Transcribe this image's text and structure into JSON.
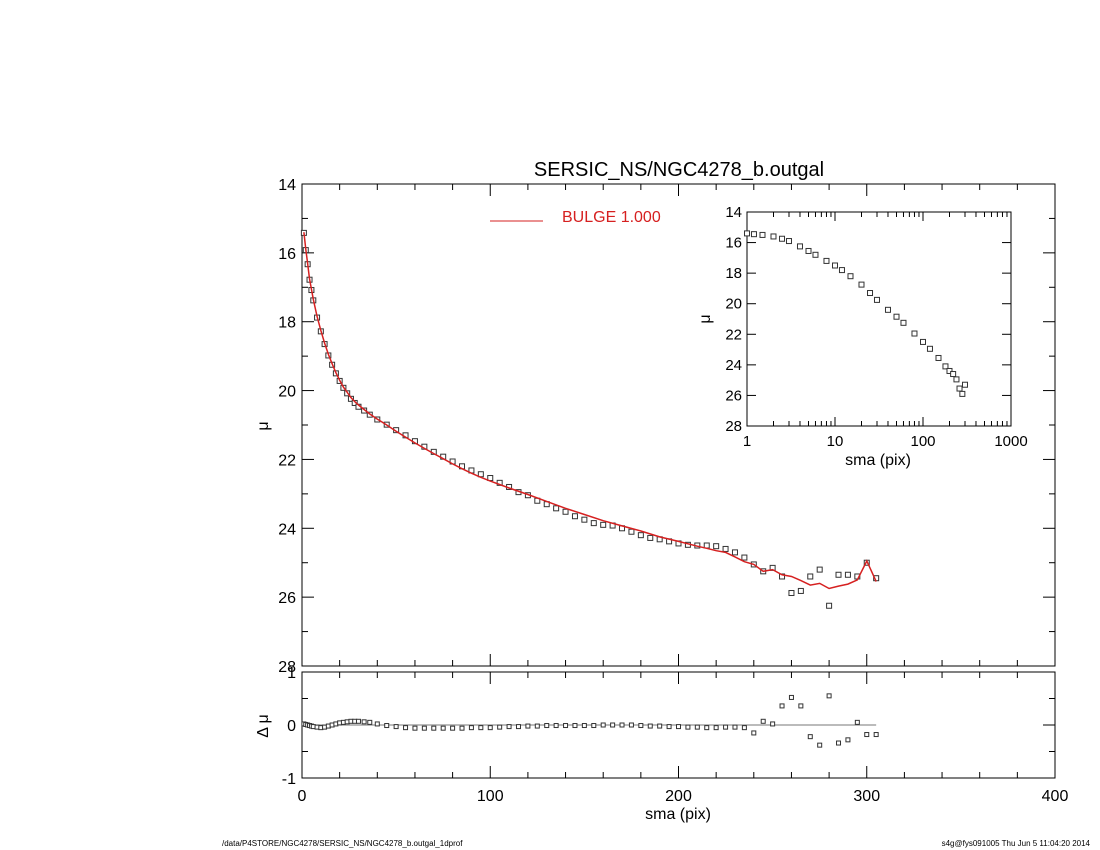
{
  "footer": {
    "path": "/data/P4STORE/NGC4278/SERSIC_NS/NGC4278_b.outgal_1dprof",
    "stamp": "s4g@fys091005  Thu Jun  5 11:04:20 2014"
  },
  "colors": {
    "model": "#d62020",
    "data": "#333333",
    "axes": "#000000"
  },
  "chart_data": [
    {
      "id": "main",
      "type": "scatter",
      "title": "SERSIC_NS/NGC4278_b.outgal",
      "xlabel": "",
      "ylabel": "μ",
      "xlim": [
        0,
        400
      ],
      "ylim": [
        28,
        14
      ],
      "xticks": [
        0,
        100,
        200,
        300,
        400
      ],
      "yticks": [
        14,
        16,
        18,
        20,
        22,
        24,
        26,
        28
      ],
      "legend": {
        "placement": "top-center",
        "entries": [
          {
            "label": "BULGE  1.000",
            "color": "#d62020"
          }
        ]
      },
      "model": {
        "name": "BULGE",
        "x": [
          1,
          2,
          3,
          4,
          5,
          6,
          8,
          10,
          12,
          14,
          16,
          18,
          20,
          22,
          24,
          26,
          28,
          30,
          33,
          36,
          40,
          45,
          50,
          55,
          60,
          65,
          70,
          75,
          80,
          85,
          90,
          95,
          100,
          110,
          120,
          130,
          140,
          150,
          160,
          170,
          180,
          190,
          200,
          210,
          215,
          220,
          225,
          230,
          235,
          240,
          245,
          250,
          255,
          260,
          265,
          270,
          275,
          280,
          285,
          290,
          295,
          300,
          305
        ],
        "y": [
          15.4,
          15.9,
          16.3,
          16.75,
          17.05,
          17.35,
          17.85,
          18.25,
          18.62,
          18.95,
          19.22,
          19.48,
          19.7,
          19.9,
          20.05,
          20.2,
          20.32,
          20.42,
          20.55,
          20.68,
          20.83,
          21.0,
          21.18,
          21.35,
          21.52,
          21.68,
          21.83,
          21.98,
          22.13,
          22.27,
          22.4,
          22.52,
          22.63,
          22.83,
          23.02,
          23.22,
          23.42,
          23.6,
          23.78,
          23.93,
          24.08,
          24.25,
          24.38,
          24.52,
          24.58,
          24.65,
          24.7,
          24.83,
          24.97,
          25.05,
          25.25,
          25.2,
          25.35,
          25.4,
          25.52,
          25.65,
          25.6,
          25.75,
          25.68,
          25.62,
          25.5,
          24.95,
          25.55
        ]
      },
      "data": {
        "name": "data",
        "x": [
          1,
          2,
          3,
          4,
          5,
          6,
          8,
          10,
          12,
          14,
          16,
          18,
          20,
          22,
          24,
          26,
          28,
          30,
          33,
          36,
          40,
          45,
          50,
          55,
          60,
          65,
          70,
          75,
          80,
          85,
          90,
          95,
          100,
          105,
          110,
          115,
          120,
          125,
          130,
          135,
          140,
          145,
          150,
          155,
          160,
          165,
          170,
          175,
          180,
          185,
          190,
          195,
          200,
          205,
          210,
          215,
          220,
          225,
          230,
          235,
          240,
          245,
          250,
          255,
          260,
          265,
          270,
          275,
          280,
          285,
          290,
          295,
          300,
          305
        ],
        "y": [
          15.42,
          15.92,
          16.33,
          16.78,
          17.08,
          17.38,
          17.88,
          18.28,
          18.65,
          18.98,
          19.25,
          19.5,
          19.72,
          19.92,
          20.08,
          20.24,
          20.36,
          20.47,
          20.58,
          20.7,
          20.84,
          20.99,
          21.15,
          21.3,
          21.47,
          21.63,
          21.78,
          21.92,
          22.06,
          22.2,
          22.32,
          22.43,
          22.54,
          22.68,
          22.8,
          22.95,
          23.04,
          23.2,
          23.3,
          23.42,
          23.52,
          23.65,
          23.75,
          23.85,
          23.9,
          23.92,
          24.0,
          24.1,
          24.2,
          24.28,
          24.32,
          24.38,
          24.44,
          24.48,
          24.5,
          24.5,
          24.52,
          24.6,
          24.7,
          24.85,
          25.05,
          25.25,
          25.15,
          25.4,
          25.88,
          25.82,
          25.4,
          25.2,
          26.25,
          25.35,
          25.35,
          25.4,
          25.0,
          25.45
        ]
      }
    },
    {
      "id": "residual",
      "type": "scatter",
      "title": "",
      "xlabel": "sma (pix)",
      "ylabel": "Δ μ",
      "xlim": [
        0,
        400
      ],
      "ylim": [
        -1,
        1
      ],
      "xticks": [
        0,
        100,
        200,
        300,
        400
      ],
      "yticks": [
        -1,
        0,
        1
      ],
      "zero_line": true,
      "x": [
        1,
        2,
        3,
        4,
        5,
        6,
        8,
        10,
        12,
        14,
        16,
        18,
        20,
        22,
        24,
        26,
        28,
        30,
        33,
        36,
        40,
        45,
        50,
        55,
        60,
        65,
        70,
        75,
        80,
        85,
        90,
        95,
        100,
        105,
        110,
        115,
        120,
        125,
        130,
        135,
        140,
        145,
        150,
        155,
        160,
        165,
        170,
        175,
        180,
        185,
        190,
        195,
        200,
        205,
        210,
        215,
        220,
        225,
        230,
        235,
        240,
        245,
        250,
        255,
        260,
        265,
        270,
        275,
        280,
        285,
        290,
        295,
        300,
        305
      ],
      "y": [
        0.02,
        0.01,
        0.0,
        -0.01,
        -0.02,
        -0.03,
        -0.04,
        -0.05,
        -0.04,
        -0.02,
        0.0,
        0.02,
        0.04,
        0.05,
        0.06,
        0.07,
        0.07,
        0.07,
        0.06,
        0.05,
        0.02,
        -0.01,
        -0.03,
        -0.05,
        -0.06,
        -0.06,
        -0.06,
        -0.06,
        -0.06,
        -0.06,
        -0.05,
        -0.05,
        -0.05,
        -0.04,
        -0.03,
        -0.03,
        -0.02,
        -0.02,
        -0.01,
        -0.01,
        -0.01,
        -0.01,
        -0.01,
        -0.01,
        0.0,
        0.0,
        0.0,
        0.0,
        -0.01,
        -0.02,
        -0.02,
        -0.03,
        -0.03,
        -0.04,
        -0.04,
        -0.05,
        -0.05,
        -0.04,
        -0.04,
        -0.05,
        -0.15,
        0.07,
        0.02,
        0.36,
        0.52,
        0.36,
        -0.22,
        -0.38,
        0.55,
        -0.34,
        -0.28,
        0.05,
        -0.18,
        -0.18
      ]
    },
    {
      "id": "inset",
      "type": "scatter",
      "title": "",
      "xlabel": "sma (pix)",
      "ylabel": "μ",
      "xscale": "log",
      "xlim": [
        1,
        1000
      ],
      "ylim": [
        28,
        14
      ],
      "xticks": [
        1,
        10,
        100,
        1000
      ],
      "yticks": [
        14,
        16,
        18,
        20,
        22,
        24,
        26,
        28
      ],
      "x": [
        1,
        1.2,
        1.5,
        2,
        2.5,
        3,
        4,
        5,
        6,
        8,
        10,
        12,
        15,
        20,
        25,
        30,
        40,
        50,
        60,
        80,
        100,
        120,
        150,
        180,
        200,
        220,
        240,
        260,
        280,
        300
      ],
      "y": [
        15.4,
        15.45,
        15.5,
        15.6,
        15.75,
        15.9,
        16.25,
        16.55,
        16.8,
        17.2,
        17.5,
        17.8,
        18.2,
        18.75,
        19.3,
        19.75,
        20.4,
        20.85,
        21.25,
        21.95,
        22.5,
        22.95,
        23.55,
        24.1,
        24.4,
        24.6,
        24.95,
        25.55,
        25.9,
        25.3
      ]
    }
  ]
}
